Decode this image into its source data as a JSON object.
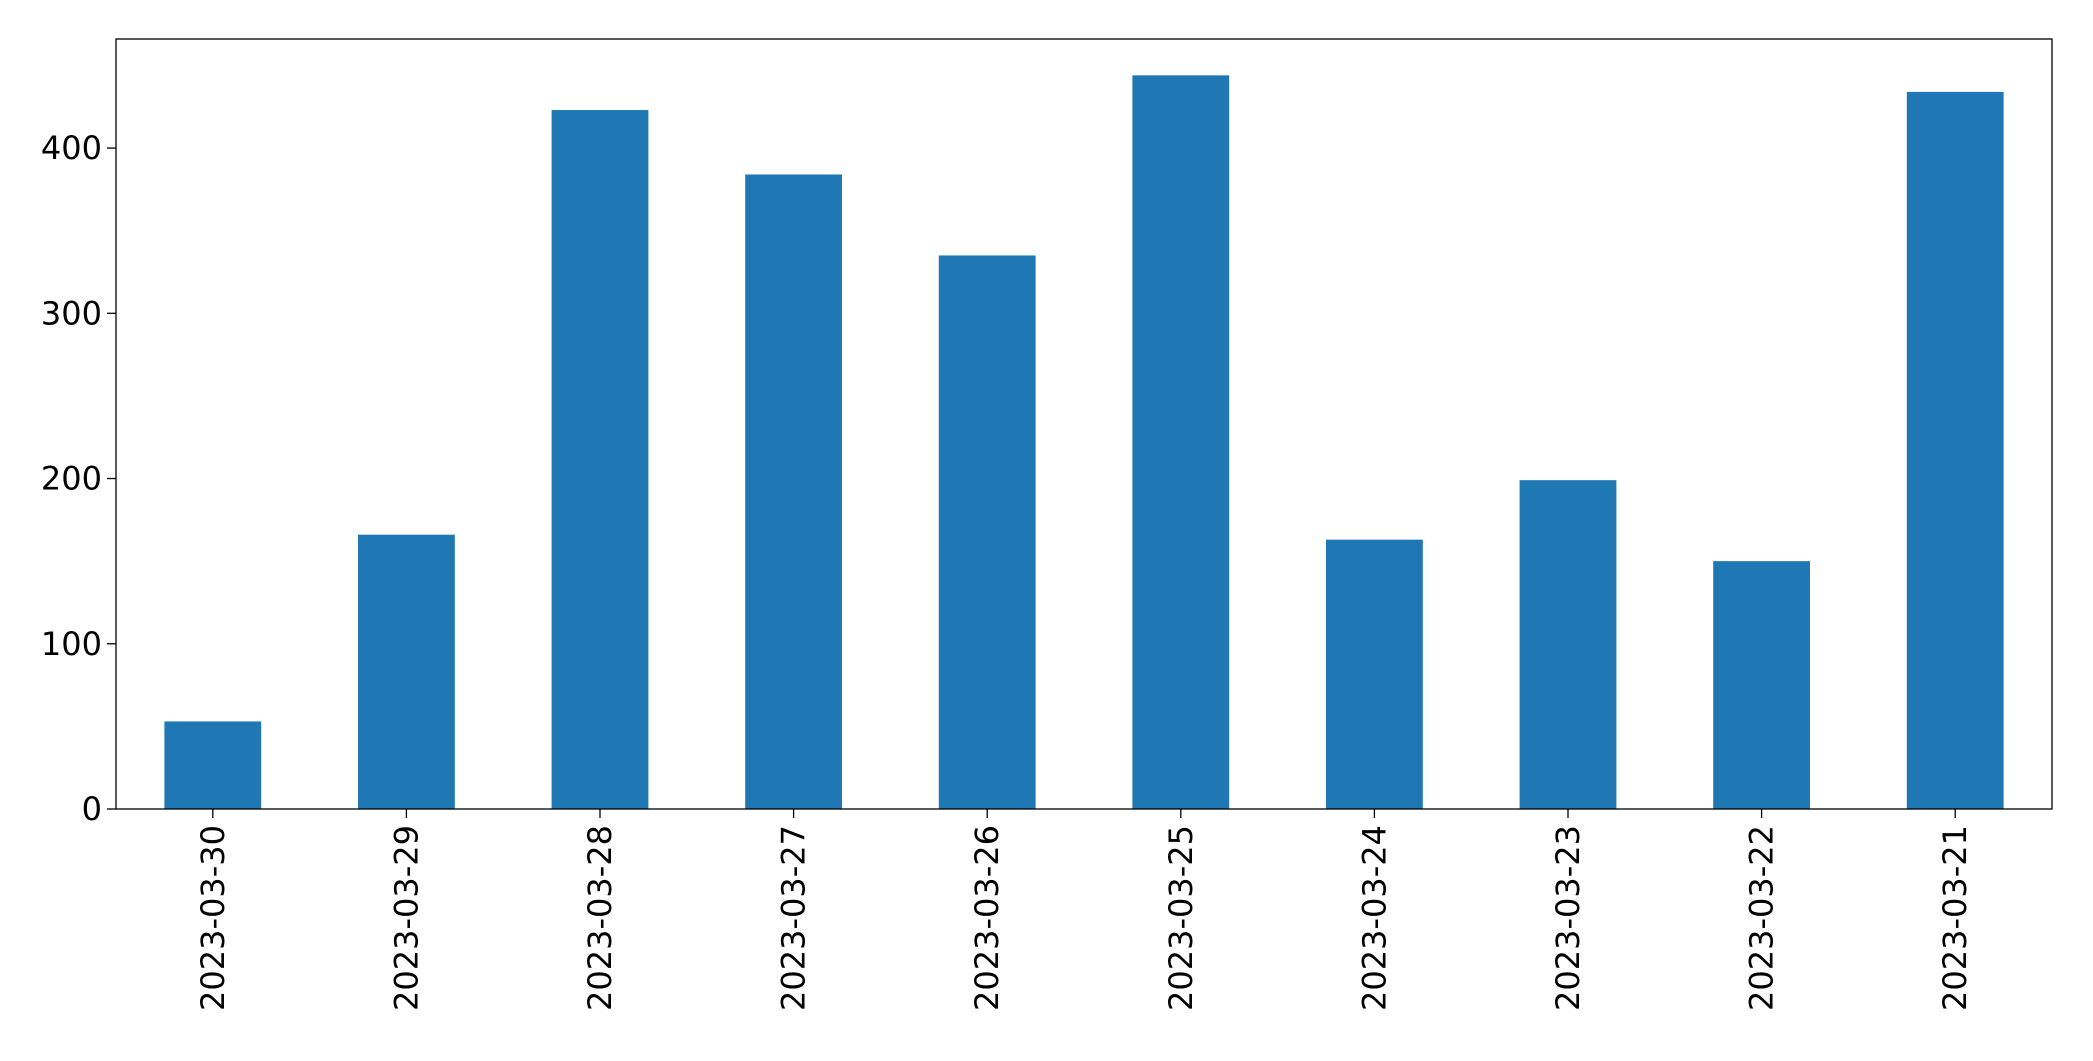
{
  "chart_data": {
    "type": "bar",
    "categories": [
      "2023-03-30",
      "2023-03-29",
      "2023-03-28",
      "2023-03-27",
      "2023-03-26",
      "2023-03-25",
      "2023-03-24",
      "2023-03-23",
      "2023-03-22",
      "2023-03-21"
    ],
    "values": [
      53,
      166,
      423,
      384,
      335,
      444,
      163,
      199,
      150,
      434
    ],
    "color": "#1f77b4",
    "ylim": [
      0,
      466
    ],
    "yticks": [
      0,
      100,
      200,
      300,
      400
    ],
    "grid": false
  }
}
